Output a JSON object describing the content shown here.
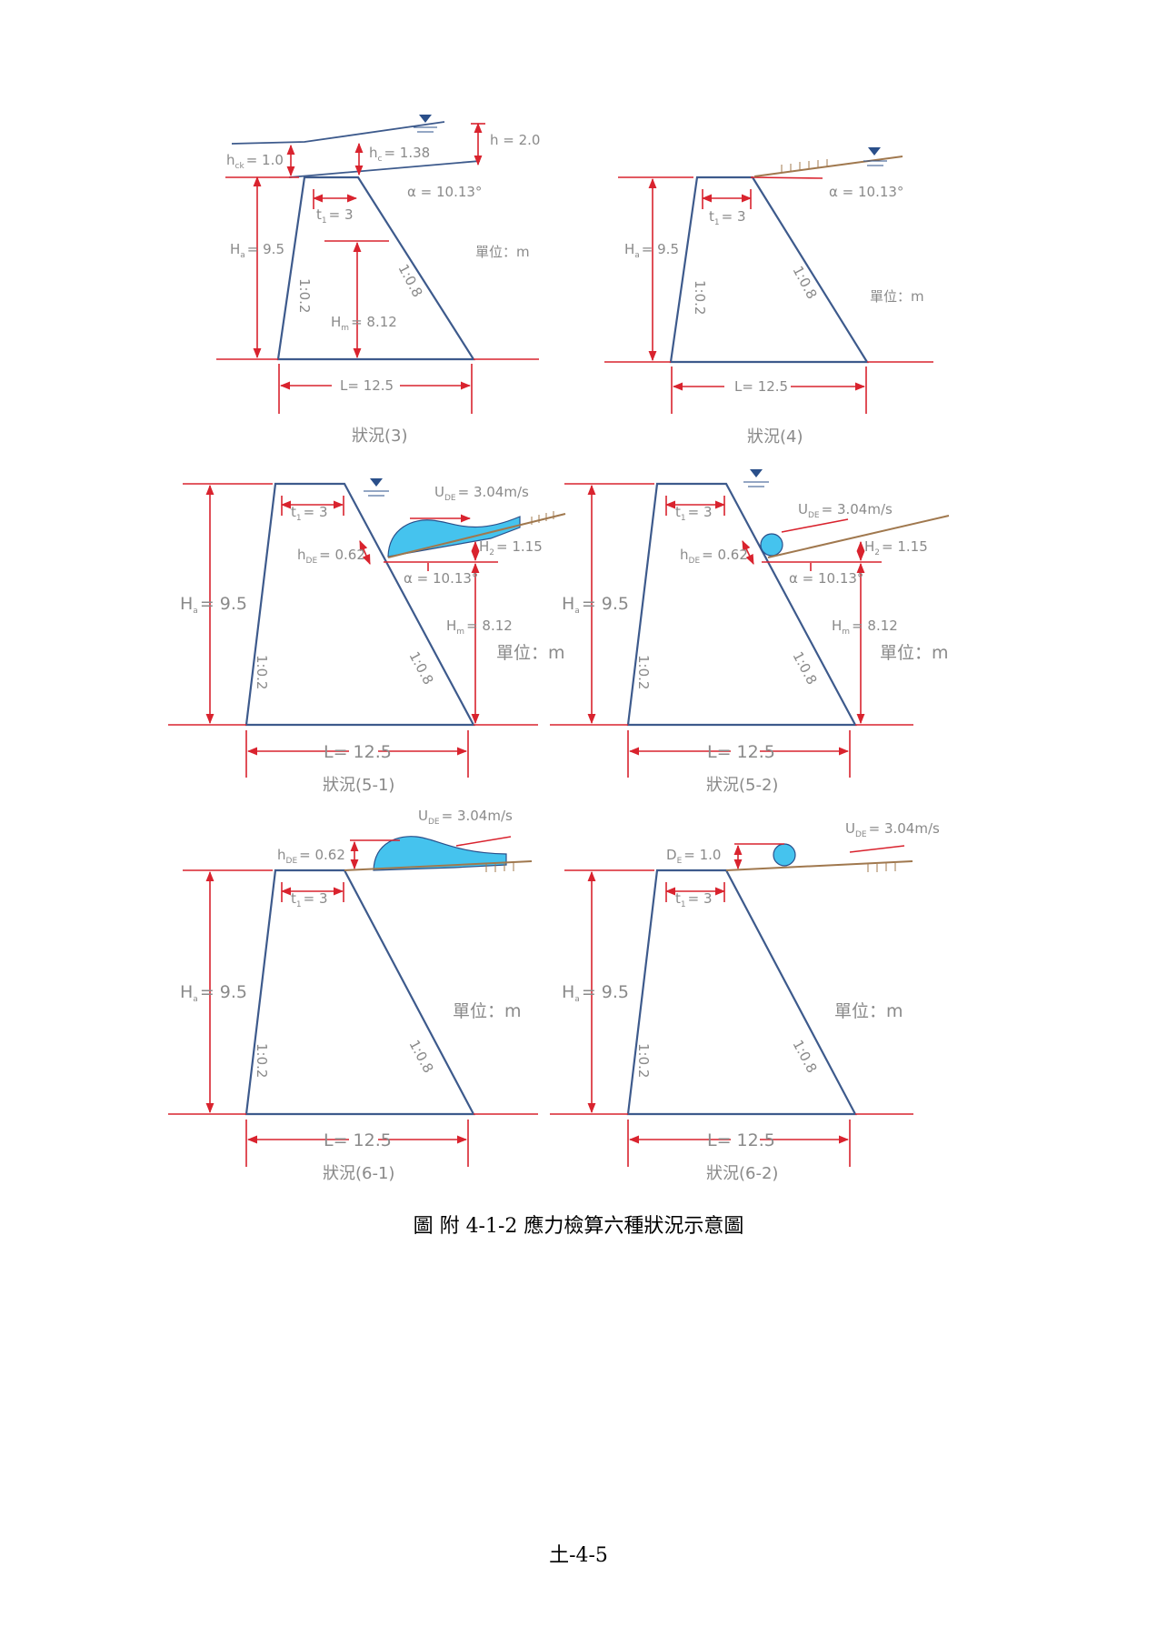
{
  "diagrams": {
    "d3": {
      "caption": "狀況(3)",
      "hck": "h",
      "hck_sub": "ck",
      "hck_val": "= 1.0",
      "hc": "h",
      "hc_sub": "c",
      "hc_val": "= 1.38",
      "h": "h = 2.0",
      "alpha": "α = 10.13°",
      "t1": "t",
      "t1_sub": "1",
      "t1_val": "= 3",
      "Ha": "H",
      "Ha_sub": "a",
      "Ha_val": "= 9.5",
      "unit": "單位：m",
      "slope_left": "1:0.2",
      "slope_right": "1:0.8",
      "Hm": "H",
      "Hm_sub": "m",
      "Hm_val": "= 8.12",
      "L": "L= 12.5"
    },
    "d4": {
      "caption": "狀況(4)",
      "alpha": "α = 10.13°",
      "t1": "t",
      "t1_sub": "1",
      "t1_val": "= 3",
      "Ha": "H",
      "Ha_sub": "a",
      "Ha_val": "= 9.5",
      "unit": "單位：m",
      "slope_left": "1:0.2",
      "slope_right": "1:0.8",
      "L": "L= 12.5"
    },
    "d51": {
      "caption": "狀況(5-1)",
      "ude": "U",
      "ude_sub": "DE",
      "ude_val": "= 3.04m/s",
      "t1": "t",
      "t1_sub": "1",
      "t1_val": "= 3",
      "hde": "h",
      "hde_sub": "DE",
      "hde_val": "= 0.62",
      "H2": "H",
      "H2_sub": "2",
      "H2_val": "= 1.15",
      "alpha": "α = 10.13°",
      "Ha": "H",
      "Ha_sub": "a",
      "Ha_val": "= 9.5",
      "Hm": "H",
      "Hm_sub": "m",
      "Hm_val": "= 8.12",
      "unit": "單位：m",
      "slope_left": "1:0.2",
      "slope_right": "1:0.8",
      "L": "L= 12.5"
    },
    "d52": {
      "caption": "狀況(5-2)",
      "ude": "U",
      "ude_sub": "DE",
      "ude_val": "= 3.04m/s",
      "t1": "t",
      "t1_sub": "1",
      "t1_val": "= 3",
      "hde": "h",
      "hde_sub": "DE",
      "hde_val": "= 0.62",
      "H2": "H",
      "H2_sub": "2",
      "H2_val": "= 1.15",
      "alpha": "α = 10.13°",
      "Ha": "H",
      "Ha_sub": "a",
      "Ha_val": "= 9.5",
      "Hm": "H",
      "Hm_sub": "m",
      "Hm_val": "= 8.12",
      "unit": "單位：m",
      "slope_left": "1:0.2",
      "slope_right": "1:0.8",
      "L": "L= 12.5"
    },
    "d61": {
      "caption": "狀況(6-1)",
      "ude": "U",
      "ude_sub": "DE",
      "ude_val": "= 3.04m/s",
      "hde": "h",
      "hde_sub": "DE",
      "hde_val": "= 0.62",
      "t1": "t",
      "t1_sub": "1",
      "t1_val": "= 3",
      "Ha": "H",
      "Ha_sub": "a",
      "Ha_val": "= 9.5",
      "unit": "單位：m",
      "slope_left": "1:0.2",
      "slope_right": "1:0.8",
      "L": "L= 12.5"
    },
    "d62": {
      "caption": "狀況(6-2)",
      "ude": "U",
      "ude_sub": "DE",
      "ude_val": "= 3.04m/s",
      "de": "D",
      "de_sub": "E",
      "de_val": "= 1.0",
      "t1": "t",
      "t1_sub": "1",
      "t1_val": "= 3",
      "Ha": "H",
      "Ha_sub": "a",
      "Ha_val": "= 9.5",
      "unit": "單位：m",
      "slope_left": "1:0.2",
      "slope_right": "1:0.8",
      "L": "L= 12.5"
    }
  },
  "figure_caption": "圖  附 4-1-2 應力檢算六種狀況示意圖",
  "page_number": "土-4-5",
  "colors": {
    "dam_outline": "#3d5a8c",
    "dimension_lines": "#d9232e",
    "water": "#45c3ee",
    "ground": "#a0784e",
    "label_text": "#8a8a8a"
  }
}
